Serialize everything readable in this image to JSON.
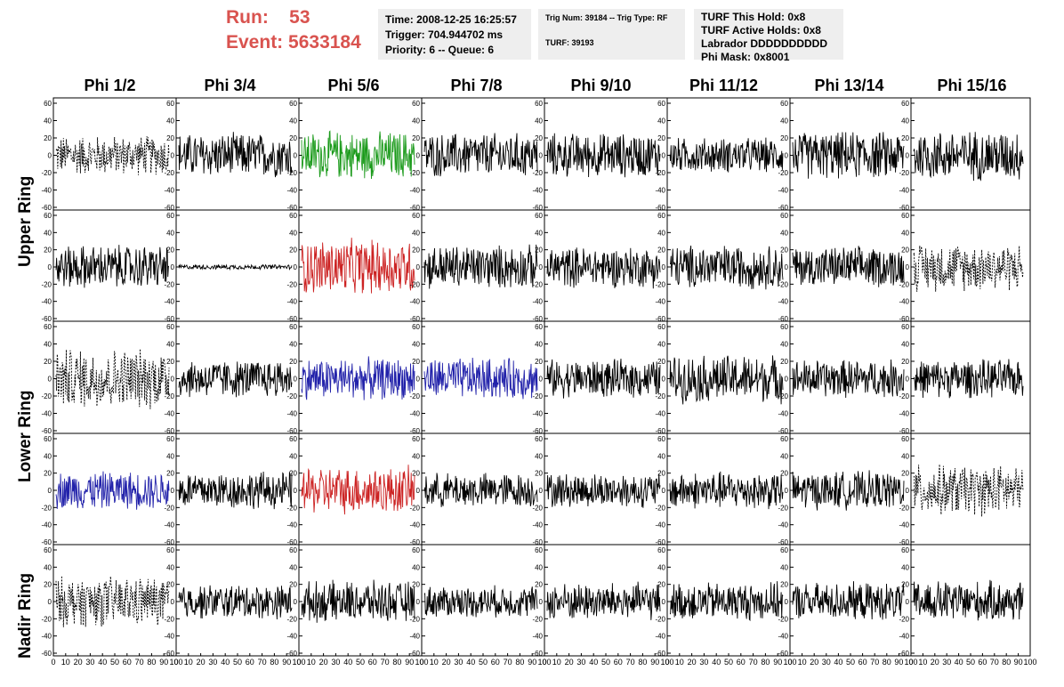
{
  "header": {
    "run_label": "Run:",
    "run_value": "53",
    "event_label": "Event:",
    "event_value": "5633184"
  },
  "time_box": {
    "time": "Time: 2008-12-25 16:25:57",
    "trigger": "Trigger: 704.944702 ms",
    "priority": "Priority: 6 -- Queue: 6"
  },
  "trig_box": {
    "trig": "Trig Num: 39184 -- Trig Type: RF",
    "turf": "TURF: 39193"
  },
  "turf_box": {
    "this_hold": "TURF This Hold: 0x8",
    "active_holds": "TURF Active Holds: 0x8",
    "labrador": "Labrador DDDDDDDDDD",
    "phi_mask": "Phi Mask: 0x8001"
  },
  "phi_labels": [
    "Phi 1/2",
    "Phi 3/4",
    "Phi 5/6",
    "Phi 7/8",
    "Phi 9/10",
    "Phi 11/12",
    "Phi 13/14",
    "Phi 15/16"
  ],
  "ring_labels": [
    "Upper Ring",
    "Lower Ring",
    "Nadir Ring"
  ],
  "colors": {
    "run_event": "#d9534f",
    "trace_default": "#000000",
    "trace_green": "#1a9a1a",
    "trace_red": "#cc2222",
    "trace_blue": "#2222aa",
    "info_box_bg": "#eeeeee"
  },
  "chart_data": {
    "type": "line",
    "y_ticks": [
      "60",
      "40",
      "20",
      "0",
      "-20",
      "-40",
      "-60"
    ],
    "x_ticks": [
      "0",
      "10",
      "20",
      "30",
      "40",
      "50",
      "60",
      "70",
      "80",
      "90",
      "100"
    ],
    "ylim": [
      -60,
      60
    ],
    "xlim": [
      0,
      100
    ],
    "rows": 5,
    "cols": 8,
    "panels_note_styles": [
      [
        "dashed",
        "solid",
        "green",
        "solid",
        "solid",
        "solid",
        "solid",
        "solid"
      ],
      [
        "solid",
        "flat",
        "red",
        "solid",
        "solid",
        "solid",
        "solid",
        "dashed"
      ],
      [
        "dashed",
        "solid",
        "blue",
        "blue",
        "solid",
        "solid",
        "solid",
        "solid"
      ],
      [
        "blue",
        "solid",
        "red",
        "solid",
        "solid",
        "solid",
        "solid",
        "dashed"
      ],
      [
        "dashed",
        "solid",
        "solid",
        "solid",
        "solid",
        "solid",
        "solid",
        "solid"
      ]
    ],
    "amplitudes": [
      [
        25,
        28,
        30,
        28,
        28,
        22,
        30,
        32
      ],
      [
        28,
        3,
        35,
        28,
        26,
        28,
        26,
        30
      ],
      [
        38,
        24,
        26,
        26,
        24,
        30,
        24,
        24
      ],
      [
        24,
        24,
        30,
        22,
        22,
        24,
        24,
        32
      ],
      [
        32,
        22,
        26,
        20,
        24,
        24,
        24,
        26
      ]
    ]
  }
}
